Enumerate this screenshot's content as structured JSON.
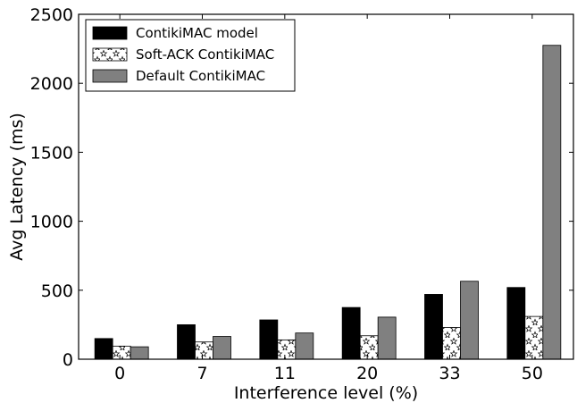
{
  "chart_data": {
    "type": "bar",
    "categories": [
      "0",
      "7",
      "11",
      "20",
      "33",
      "50"
    ],
    "series": [
      {
        "name": "ContikiMAC model",
        "values": [
          150,
          250,
          285,
          375,
          470,
          520
        ],
        "color": "#000000",
        "pattern": "solid"
      },
      {
        "name": "Soft-ACK ContikiMAC",
        "values": [
          95,
          125,
          140,
          170,
          230,
          310
        ],
        "color": "#ffffff",
        "pattern": "stars"
      },
      {
        "name": "Default ContikiMAC",
        "values": [
          90,
          165,
          190,
          305,
          565,
          2275
        ],
        "color": "#808080",
        "pattern": "solid"
      }
    ],
    "xlabel": "Interference level (%)",
    "ylabel": "Avg Latency (ms)",
    "ylim": [
      0,
      2500
    ],
    "yticks": [
      0,
      500,
      1000,
      1500,
      2000,
      2500
    ],
    "grid": false,
    "legend_position": "top-left"
  }
}
